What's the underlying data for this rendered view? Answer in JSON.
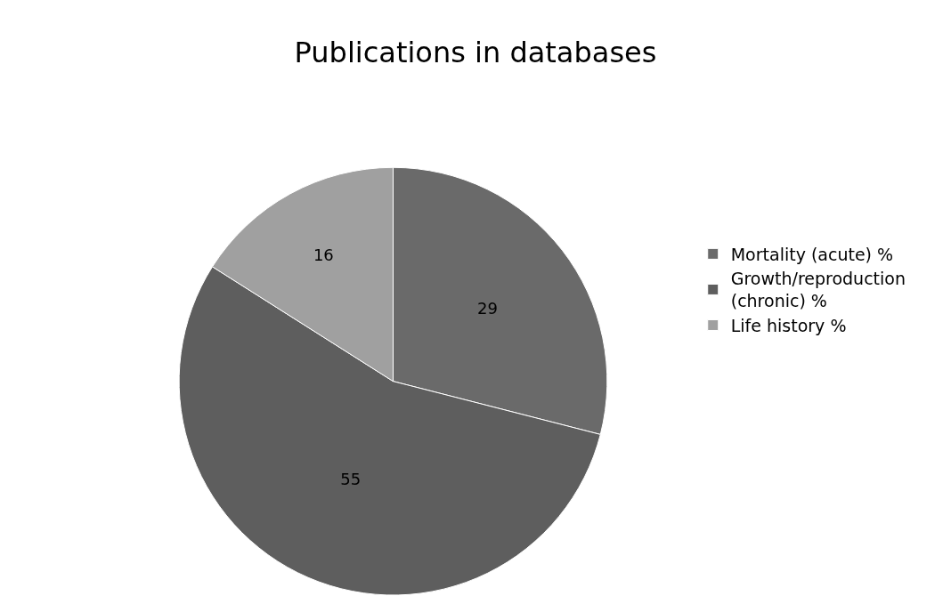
{
  "chart_data": {
    "type": "pie",
    "title": "Publications in databases",
    "categories": [
      "Mortality (acute) %",
      "Growth/reproduction (chronic) %",
      "Life history %"
    ],
    "values": [
      29,
      55,
      16
    ],
    "colors": [
      "#6a6a6a",
      "#5e5e5e",
      "#a0a0a0"
    ],
    "data_labels": true,
    "legend": "right"
  }
}
